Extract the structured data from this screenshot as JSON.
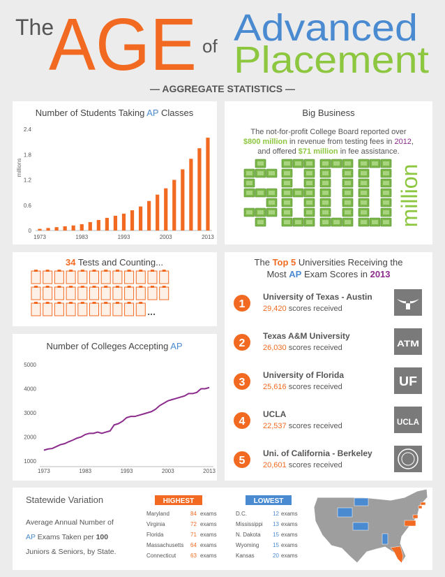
{
  "header": {
    "the": "The",
    "age": "AGE",
    "of": "of",
    "advanced": "Advanced",
    "placement": "Placement",
    "subtitle": "— AGGREGATE STATISTICS —"
  },
  "chart_data": [
    {
      "type": "bar",
      "title": [
        "Number of Students Taking ",
        "AP",
        " Classes"
      ],
      "ylabel": "millions",
      "x": [
        1973,
        1975,
        1977,
        1979,
        1981,
        1983,
        1985,
        1987,
        1989,
        1991,
        1993,
        1995,
        1997,
        1999,
        2001,
        2003,
        2005,
        2007,
        2009,
        2011,
        2013
      ],
      "values": [
        0.04,
        0.06,
        0.08,
        0.1,
        0.12,
        0.15,
        0.2,
        0.25,
        0.3,
        0.35,
        0.4,
        0.48,
        0.57,
        0.7,
        0.85,
        1.0,
        1.2,
        1.45,
        1.7,
        1.95,
        2.2
      ],
      "color": "#f26a21",
      "xlim": [
        1972,
        2014
      ],
      "xticks": [
        1973,
        1983,
        1993,
        2003,
        2013
      ],
      "ylim": [
        0,
        2.4
      ],
      "yticks": [
        0,
        0.6,
        1.2,
        1.8,
        2.4
      ]
    },
    {
      "type": "line",
      "title": [
        "Number of Colleges Accepting ",
        "AP"
      ],
      "x": [
        1973,
        1974,
        1975,
        1976,
        1977,
        1978,
        1979,
        1980,
        1981,
        1982,
        1983,
        1984,
        1985,
        1986,
        1987,
        1988,
        1989,
        1990,
        1991,
        1992,
        1993,
        1994,
        1995,
        1996,
        1997,
        1998,
        1999,
        2000,
        2001,
        2002,
        2003,
        2004,
        2005,
        2006,
        2007,
        2008,
        2009,
        2010,
        2011,
        2012,
        2013
      ],
      "values": [
        1450,
        1500,
        1520,
        1600,
        1680,
        1720,
        1800,
        1870,
        1950,
        2000,
        2100,
        2150,
        2150,
        2200,
        2150,
        2200,
        2250,
        2500,
        2550,
        2650,
        2800,
        2850,
        2850,
        2900,
        2950,
        3000,
        3050,
        3150,
        3300,
        3400,
        3500,
        3550,
        3600,
        3650,
        3700,
        3800,
        3800,
        3850,
        4000,
        4000,
        4050
      ],
      "color": "#8b2b8c",
      "xlim": [
        1972,
        2014
      ],
      "xticks": [
        1973,
        1983,
        1993,
        2003,
        2013
      ],
      "ylim": [
        1000,
        5000
      ],
      "yticks": [
        1000,
        2000,
        3000,
        4000,
        5000
      ]
    }
  ],
  "big_business": {
    "title": "Big Business",
    "body": [
      [
        "The not-for-profit College Board reported over"
      ],
      [
        "$800 million",
        " in revenue from testing fees in ",
        "2012",
        ","
      ],
      [
        "and offered ",
        "$71 million",
        " in fee assistance."
      ]
    ],
    "million": "million"
  },
  "tests": {
    "title": [
      "34",
      " Tests and Counting..."
    ],
    "count": 34,
    "more": "..."
  },
  "top_universities": {
    "title": [
      [
        "The ",
        "Top 5",
        " Universities Receiving the"
      ],
      [
        "Most ",
        "AP",
        " Exam Scores in ",
        "2013"
      ]
    ],
    "score_suffix": "scores received",
    "items": [
      {
        "rank": 1,
        "name": "University of Texas - Austin",
        "score": "29,420"
      },
      {
        "rank": 2,
        "name": "Texas A&M University",
        "score": "26,030",
        "logo": "ATM"
      },
      {
        "rank": 3,
        "name": "University of Florida",
        "score": "25,616",
        "logo": "UF"
      },
      {
        "rank": 4,
        "name": "UCLA",
        "score": "22,537",
        "logo": "UCLA"
      },
      {
        "rank": 5,
        "name": "Uni. of California - Berkeley",
        "score": "20,601"
      }
    ]
  },
  "statewide": {
    "title": "Statewide Variation",
    "description": [
      [
        "Average Annual Number of"
      ],
      [
        "AP",
        " Exams Taken per ",
        "100"
      ],
      [
        "Juniors & Seniors, by State."
      ]
    ],
    "unit": "exams",
    "highest": {
      "label": "HIGHEST",
      "rows": [
        {
          "state": "Maryland",
          "exams": 84
        },
        {
          "state": "Virginia",
          "exams": 72
        },
        {
          "state": "Florida",
          "exams": 71
        },
        {
          "state": "Massachusetts",
          "exams": 64
        },
        {
          "state": "Connecticut",
          "exams": 63
        }
      ]
    },
    "lowest": {
      "label": "LOWEST",
      "rows": [
        {
          "state": "D.C.",
          "exams": 12
        },
        {
          "state": "Mississippi",
          "exams": 13
        },
        {
          "state": "N. Dakota",
          "exams": 15
        },
        {
          "state": "Wyoming",
          "exams": 15
        },
        {
          "state": "Kansas",
          "exams": 20
        }
      ]
    }
  }
}
